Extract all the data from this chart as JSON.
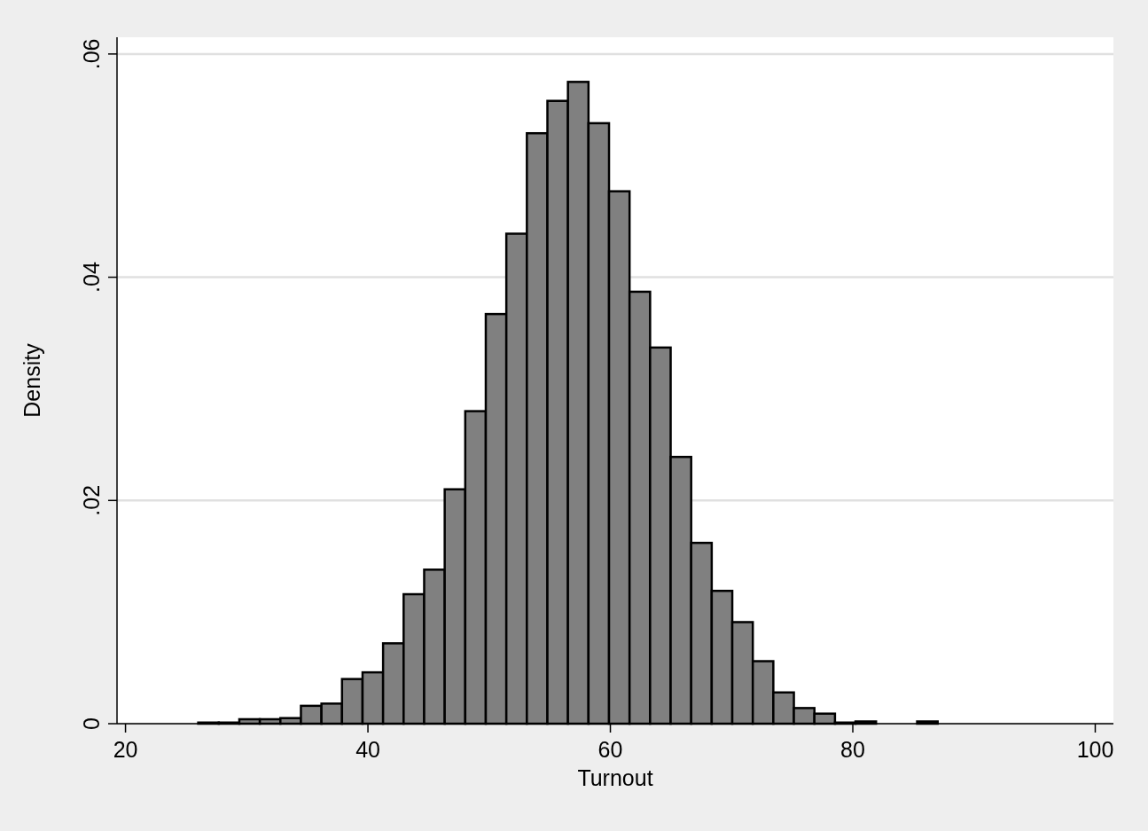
{
  "chart_data": {
    "type": "histogram",
    "xlabel": "Turnout",
    "ylabel": "Density",
    "color": "#808080",
    "bins": [
      26,
      27.694,
      29.389,
      31.083,
      32.778,
      34.472,
      36.167,
      37.861,
      39.556,
      41.25,
      42.944,
      44.639,
      46.333,
      48.028,
      49.722,
      51.417,
      53.111,
      54.806,
      56.5,
      58.194,
      59.889,
      61.583,
      63.278,
      64.972,
      66.667,
      68.361,
      70.056,
      71.75,
      73.444,
      75.139,
      76.833,
      78.528,
      80.222,
      81.917,
      83.611,
      85.306,
      87
    ],
    "values": [
      0.0001,
      0.0001,
      0.0004,
      0.0004,
      0.0005,
      0.0016,
      0.0018,
      0.004,
      0.0046,
      0.0072,
      0.0116,
      0.0138,
      0.021,
      0.028,
      0.0367,
      0.0439,
      0.0529,
      0.0558,
      0.0575,
      0.0538,
      0.0477,
      0.0387,
      0.0337,
      0.0239,
      0.0162,
      0.0119,
      0.0091,
      0.0056,
      0.0028,
      0.0014,
      0.0009,
      0.0001,
      0.0002,
      0,
      0,
      0.0002
    ],
    "xlim": [
      19.3,
      101.5
    ],
    "xticks": [
      20,
      40,
      60,
      80,
      100
    ],
    "ylim": [
      0,
      0.0615
    ],
    "yticks": [
      {
        "value": 0,
        "label": "0"
      },
      {
        "value": 0.02,
        "label": ".02"
      },
      {
        "value": 0.04,
        "label": ".04"
      },
      {
        "value": 0.06,
        "label": ".06"
      }
    ],
    "grid": "y"
  }
}
